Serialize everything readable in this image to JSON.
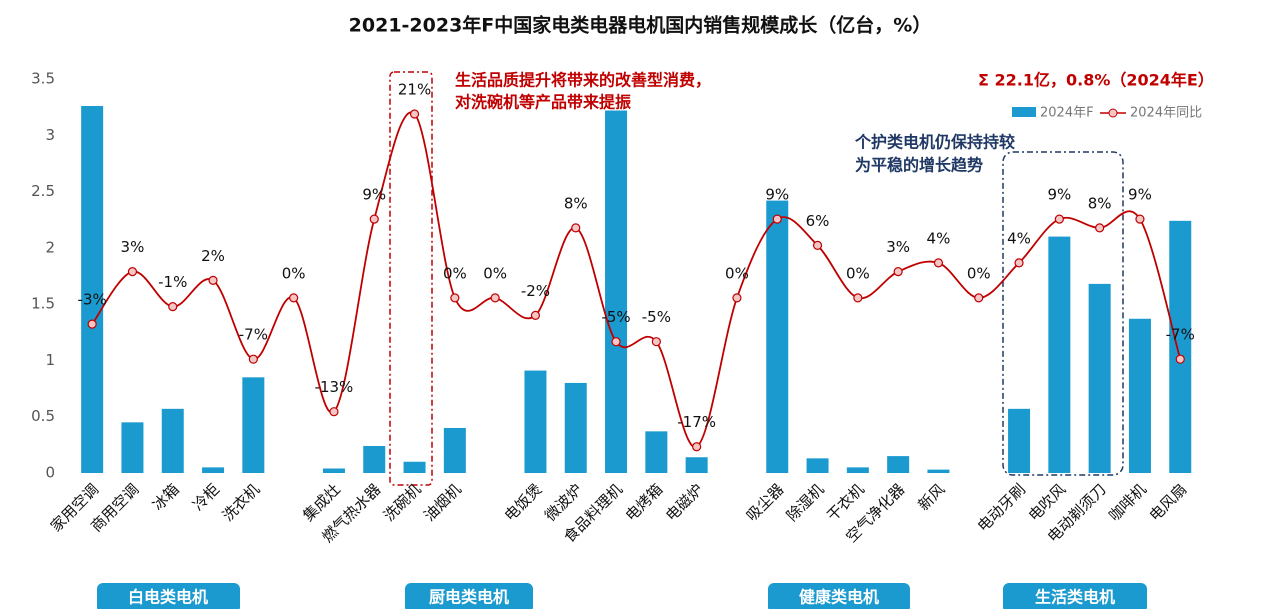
{
  "chart_data": {
    "type": "bar-line",
    "title": "2021-2023年F中国家电类电器电机国内销售规模成长（亿台，%）",
    "categories": [
      "家用空调",
      "商用空调",
      "冰箱",
      "冷柜",
      "洗衣机",
      null,
      "集成灶",
      "燃气热水器",
      "洗碗机",
      "油烟机",
      null,
      "电饭煲",
      "微波炉",
      "食品料理机",
      "电烤箱",
      "电磁炉",
      null,
      "吸尘器",
      "除湿机",
      "干衣机",
      "空气净化器",
      "新风",
      null,
      "电动牙刷",
      "电吹风",
      "电动剃须刀",
      "咖啡机",
      "电风扇"
    ],
    "series": [
      {
        "name": "2024年F",
        "type": "bar",
        "color": "#1b9ad0",
        "values": [
          3.26,
          0.45,
          0.57,
          0.05,
          0.85,
          null,
          0.04,
          0.24,
          0.1,
          0.4,
          null,
          0.91,
          0.8,
          3.22,
          0.37,
          0.14,
          null,
          2.42,
          0.13,
          0.05,
          0.15,
          0.03,
          null,
          0.57,
          2.1,
          1.68,
          1.37,
          2.24
        ]
      },
      {
        "name": "2024年同比",
        "type": "line",
        "axis": "y2",
        "color": "#c00000",
        "values": [
          -3,
          3,
          -1,
          2,
          -7,
          0,
          -13,
          9,
          21,
          0,
          0,
          -2,
          8,
          -5,
          -5,
          -17,
          0,
          9,
          6,
          0,
          3,
          4,
          0,
          4,
          9,
          8,
          9,
          -7
        ],
        "value_labels": [
          "-3%",
          "3%",
          "-1%",
          "2%",
          "-7%",
          "0%",
          "-13%",
          "9%",
          "21%",
          "0%",
          "0%",
          "-2%",
          "8%",
          "-5%",
          "-5%",
          "-17%",
          "0%",
          "9%",
          "6%",
          "0%",
          "3%",
          "4%",
          "0%",
          "4%",
          "9%",
          "8%",
          "9%",
          "-7%"
        ]
      }
    ],
    "ylim": [
      0,
      3.5
    ],
    "yticks": [
      0,
      0.5,
      1,
      1.5,
      2,
      2.5,
      3,
      3.5
    ],
    "y2lim": [
      -20,
      25
    ],
    "grid": false,
    "legend": "top-right",
    "annotations": [
      "生活品质提升将带来的改善型消费，",
      "对洗碗机等产品带来提振",
      "Σ 22.1亿，0.8%（2024年E）",
      "个护类电机仍保持持较",
      "为平稳的增长趋势"
    ],
    "groups": [
      "白电类电机",
      "厨电类电机",
      "健康类电机",
      "生活类电机"
    ]
  }
}
